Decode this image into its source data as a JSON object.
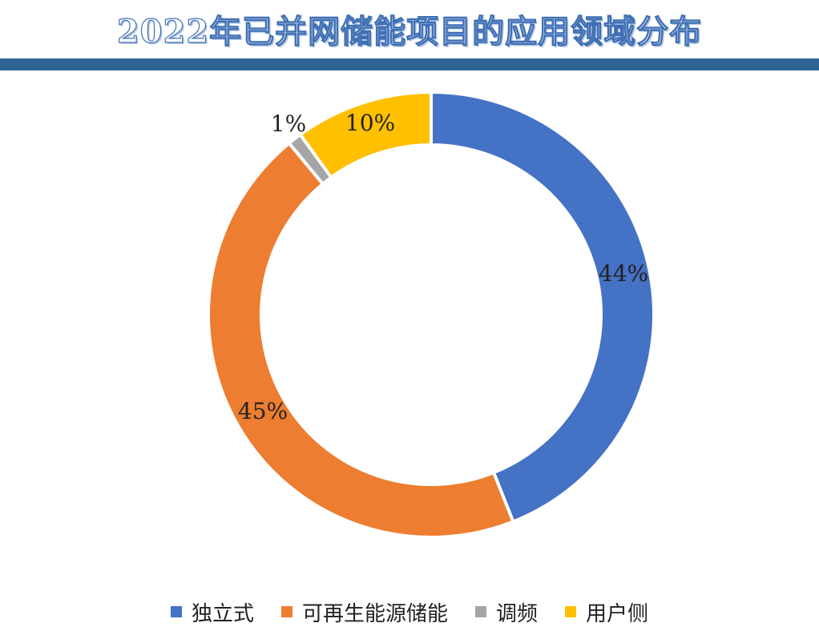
{
  "chart_data": {
    "type": "pie",
    "title": "2022年已并网储能项目的应用领域分布",
    "donut": true,
    "categories": [
      "独立式",
      "可再生能源储能",
      "调频",
      "用户侧"
    ],
    "values": [
      44,
      45,
      1,
      10
    ],
    "labels": [
      "44%",
      "45%",
      "1%",
      "10%"
    ],
    "colors": [
      "#4472c4",
      "#ed7d31",
      "#a5a5a5",
      "#ffc000"
    ],
    "legend_position": "bottom"
  }
}
